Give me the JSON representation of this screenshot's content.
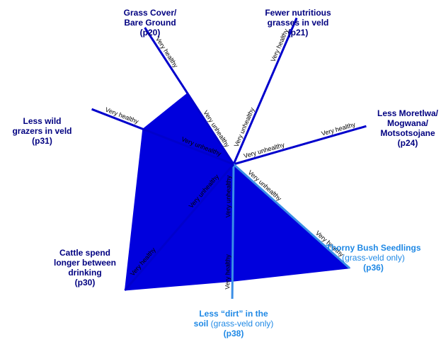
{
  "chart_data": {
    "type": "radar",
    "scale": {
      "inner_label": "Very unhealthy",
      "outer_label": "Very healthy"
    },
    "colors": {
      "fill": "#0000dd",
      "axis": "#0000cc",
      "highlight_axis": "#3a8ee6",
      "title_dark": "#000080",
      "title_light": "#1e88e5"
    },
    "axes": [
      {
        "id": "grass",
        "line1": "Grass Cover/",
        "line2": "Bare Ground",
        "note": "",
        "page": "(p20)",
        "value": 0.52,
        "highlight": false
      },
      {
        "id": "grasses",
        "line1": "Fewer nutritious",
        "line2": "grasses in veld",
        "note": "",
        "page": "(p21)",
        "value": 0.0,
        "highlight": false
      },
      {
        "id": "moretlwa",
        "line1": "Less Moretlwa/",
        "line2": "Mogwana/",
        "line3": "Motsotsojane",
        "note": "",
        "page": "(p24)",
        "value": 0.0,
        "highlight": false
      },
      {
        "id": "thorny",
        "line1": "Thorny Bush Seedlings",
        "line2": "",
        "note": "(grass-veld only)",
        "page": "(p36)",
        "value": 1.0,
        "highlight": true
      },
      {
        "id": "dirt",
        "line1": "Less “dirt” in the",
        "line2": "soil",
        "note": "(grass-veld only)",
        "page": "(p38)",
        "value": 0.87,
        "highlight": true
      },
      {
        "id": "cattle",
        "line1": "Cattle spend",
        "line2": "longer between",
        "line3": "drinking",
        "note": "",
        "page": "(p30)",
        "value": 1.0,
        "highlight": false
      },
      {
        "id": "wild",
        "line1": "Less wild",
        "line2": "grazers in veld",
        "note": "",
        "page": "(p31)",
        "value": 0.64,
        "highlight": false
      }
    ]
  }
}
